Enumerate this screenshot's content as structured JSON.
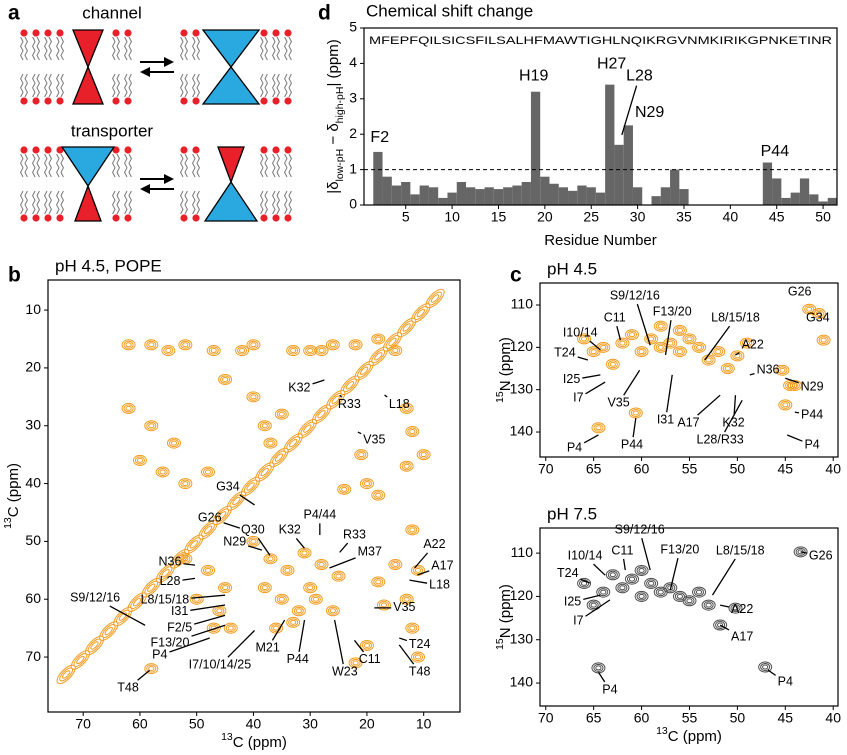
{
  "panel_labels": [
    "a",
    "b",
    "c",
    "d"
  ],
  "diagram": {
    "channel": "channel",
    "transporter": "transporter"
  },
  "chart_data": [
    {
      "type": "bar",
      "title": "Chemical shift change",
      "sequence": "MFEPFQILSICSFILSALHFMAWTIGHLNQIKRGVNMKIRIKGPNKETINR",
      "xlabel": "Residue Number",
      "ylabel_parts": [
        "|δ",
        "low-pH",
        " − δ",
        "high-pH",
        "| (ppm)"
      ],
      "x": [
        1,
        2,
        3,
        4,
        5,
        6,
        7,
        8,
        9,
        10,
        11,
        12,
        13,
        14,
        15,
        16,
        17,
        18,
        19,
        20,
        21,
        22,
        23,
        24,
        25,
        26,
        27,
        28,
        29,
        30,
        31,
        32,
        33,
        34,
        35,
        36,
        37,
        38,
        39,
        40,
        41,
        42,
        43,
        44,
        45,
        46,
        47,
        48,
        49,
        50,
        51
      ],
      "values": [
        null,
        1.5,
        0.8,
        0.55,
        0.65,
        0.3,
        0.55,
        0.5,
        0.2,
        0.35,
        0.65,
        0.5,
        0.45,
        0.5,
        0.45,
        0.5,
        0.55,
        0.65,
        3.2,
        0.8,
        0.6,
        0.5,
        0.4,
        0.55,
        0.5,
        0.35,
        3.4,
        1.7,
        2.25,
        0.5,
        null,
        0.25,
        0.5,
        1.0,
        0.45,
        null,
        null,
        null,
        null,
        null,
        null,
        null,
        null,
        1.2,
        0.75,
        0.2,
        0.35,
        0.75,
        0.3,
        0.1,
        0.2
      ],
      "color": "#666666",
      "reference_line": 1,
      "xlim": [
        0.5,
        51.5
      ],
      "ylim": [
        0,
        5
      ],
      "xticks": [
        5,
        10,
        15,
        20,
        25,
        30,
        35,
        40,
        45,
        50
      ],
      "yticks": [
        0,
        1,
        2,
        3,
        4,
        5
      ],
      "annotations": [
        {
          "text": "F2",
          "x": 2.2,
          "y": 1.9
        },
        {
          "text": "H19",
          "x": 18.8,
          "y": 3.64
        },
        {
          "text": "H27",
          "x": 27.2,
          "y": 3.98
        },
        {
          "text": "L28",
          "x": 30.2,
          "y": 3.64,
          "at": [
            28.3,
            1.98
          ]
        },
        {
          "text": "N29",
          "x": 31.3,
          "y": 2.6
        },
        {
          "text": "P44",
          "x": 44.8,
          "y": 1.5
        }
      ]
    },
    {
      "type": "contour",
      "title": "pH 4.5, POPE",
      "color": "#f39c1f",
      "xlabel_parts": [
        "13",
        "C (ppm)"
      ],
      "ylabel_parts": [
        "13",
        "C (ppm)"
      ],
      "xlim": [
        76.2,
        3.6
      ],
      "ylim": [
        79.5,
        4.8
      ],
      "xticks": [
        70,
        60,
        50,
        40,
        30,
        20,
        10
      ],
      "yticks": [
        10,
        20,
        30,
        40,
        50,
        60,
        70
      ],
      "diagonal": {
        "x": [
          73,
          70.5,
          68,
          65.5,
          63,
          60.5,
          58,
          55.5,
          53,
          50.5,
          48,
          45.5,
          43,
          40.5,
          38,
          35.5,
          33,
          30.5,
          28,
          25.5,
          23,
          20.5,
          18,
          15.5,
          13,
          10.5,
          8
        ],
        "y": [
          73,
          70.5,
          68,
          65.5,
          63,
          60.5,
          58,
          55.5,
          53,
          50.5,
          48,
          45.5,
          43,
          40.5,
          38,
          35.5,
          33,
          30.5,
          28,
          25.5,
          23,
          20.5,
          18,
          15.5,
          13,
          10.5,
          8
        ]
      },
      "peaks": {
        "x": [
          62,
          58,
          55,
          52,
          47,
          42,
          40,
          33,
          30,
          28,
          26,
          22,
          18,
          15,
          62,
          58,
          54,
          60,
          56,
          52,
          48,
          45,
          40,
          38,
          35,
          37,
          13,
          12,
          10,
          13,
          20,
          24,
          18,
          40,
          37,
          34,
          31,
          28,
          25,
          38,
          35,
          32,
          29,
          26,
          36,
          33,
          30,
          12,
          11,
          13,
          12,
          11,
          15,
          18,
          52,
          48,
          45,
          50,
          46,
          44,
          47,
          58,
          20,
          22,
          17,
          21
        ],
        "y": [
          16,
          16,
          17,
          16,
          17,
          17,
          16,
          17,
          17,
          17,
          16,
          16,
          15,
          17,
          27,
          30,
          33,
          36,
          38,
          40,
          38,
          22,
          25,
          30,
          28,
          33,
          27,
          31,
          35,
          37,
          40,
          41,
          42,
          50,
          53,
          55,
          52,
          54,
          56,
          58,
          60,
          62,
          60,
          62,
          65,
          64,
          58,
          48,
          55,
          60,
          65,
          70,
          54,
          57,
          53,
          55,
          58,
          60,
          62,
          65,
          65,
          72,
          68,
          71,
          61,
          35
        ]
      },
      "annotations": [
        {
          "text": "V35",
          "x": 18.7,
          "y": 32.5,
          "at": [
            21.6,
            31.1
          ]
        },
        {
          "text": "K32",
          "x": 31.9,
          "y": 23.5,
          "at": [
            27.5,
            22.1
          ]
        },
        {
          "text": "L18",
          "x": 14.3,
          "y": 26.4,
          "at": [
            16.9,
            24.7
          ]
        },
        {
          "text": "R33",
          "x": 23.1,
          "y": 26.4,
          "at": [
            24.8,
            24.7
          ]
        },
        {
          "text": "G34",
          "x": 44.5,
          "y": 40.6,
          "at": [
            39.8,
            43.7
          ]
        },
        {
          "text": "G26",
          "x": 47.7,
          "y": 46.0,
          "at": [
            42.4,
            47.7
          ]
        },
        {
          "text": "Q30",
          "x": 40.1,
          "y": 48.1,
          "at": [
            37.1,
            52.4
          ]
        },
        {
          "text": "N29",
          "x": 43.3,
          "y": 50.1,
          "at": [
            38.5,
            51.5
          ]
        },
        {
          "text": "K32",
          "x": 33.6,
          "y": 48.1,
          "at": [
            31.0,
            51.2
          ]
        },
        {
          "text": "P4/44",
          "x": 28.3,
          "y": 45.5,
          "at": [
            28.3,
            48.9
          ]
        },
        {
          "text": "R33",
          "x": 22.2,
          "y": 48.9,
          "at": [
            24.8,
            51.9
          ]
        },
        {
          "text": "M37",
          "x": 19.5,
          "y": 51.9,
          "at": [
            26.6,
            54.6
          ]
        },
        {
          "text": "A22",
          "x": 8.1,
          "y": 50.6,
          "at": [
            11.6,
            54.6
          ]
        },
        {
          "text": "A17",
          "x": 6.7,
          "y": 54.3,
          "at": [
            11.1,
            55.8
          ]
        },
        {
          "text": "L18",
          "x": 7.2,
          "y": 57.6,
          "at": [
            12.5,
            56.7
          ]
        },
        {
          "text": "N36",
          "x": 54.7,
          "y": 53.6,
          "at": [
            50.3,
            54.1
          ]
        },
        {
          "text": "L28",
          "x": 54.7,
          "y": 57.0,
          "at": [
            50.3,
            56.4
          ]
        },
        {
          "text": "S9/12/16",
          "x": 67.9,
          "y": 59.8,
          "at": [
            59.1,
            64.5
          ]
        },
        {
          "text": "L8/15/18",
          "x": 55.6,
          "y": 60.2,
          "at": [
            45.0,
            59.3
          ]
        },
        {
          "text": "I31",
          "x": 53.0,
          "y": 62.2,
          "at": [
            45.0,
            61.0
          ]
        },
        {
          "text": "F2/5",
          "x": 53.0,
          "y": 65.0,
          "at": [
            45.0,
            62.8
          ]
        },
        {
          "text": "F13/20",
          "x": 54.7,
          "y": 67.6,
          "at": [
            45.0,
            64.5
          ]
        },
        {
          "text": "P4",
          "x": 56.5,
          "y": 69.7,
          "at": [
            47.7,
            66.7
          ]
        },
        {
          "text": "I7/10/14/25",
          "x": 45.9,
          "y": 71.4,
          "at": [
            39.8,
            65.4
          ]
        },
        {
          "text": "M21",
          "x": 37.5,
          "y": 68.5,
          "at": [
            34.5,
            63.6
          ]
        },
        {
          "text": "P44",
          "x": 32.2,
          "y": 70.5,
          "at": [
            31.0,
            63.6
          ]
        },
        {
          "text": "W23",
          "x": 23.9,
          "y": 72.6,
          "at": [
            25.7,
            63.6
          ]
        },
        {
          "text": "C11",
          "x": 19.5,
          "y": 70.5,
          "at": [
            22.2,
            67.1
          ]
        },
        {
          "text": "V35",
          "x": 13.4,
          "y": 61.5,
          "at": [
            18.7,
            61.5
          ]
        },
        {
          "text": "T24",
          "x": 10.7,
          "y": 67.9,
          "at": [
            14.3,
            66.7
          ]
        },
        {
          "text": "T48",
          "x": 10.7,
          "y": 72.6,
          "at": [
            14.3,
            67.9
          ]
        },
        {
          "text": "T48",
          "x": 62.1,
          "y": 75.4,
          "at": [
            58.3,
            72.3
          ]
        }
      ]
    },
    {
      "type": "contour",
      "title": "pH 4.5",
      "color": "#f39c1f",
      "ylabel_parts": [
        "15",
        "N (ppm)"
      ],
      "xlim": [
        70.6,
        39.5
      ],
      "ylim": [
        145.9,
        104.8
      ],
      "xticks": [
        70,
        65,
        60,
        55,
        50,
        45,
        40
      ],
      "yticks": [
        110,
        120,
        130,
        140
      ],
      "peaks": {
        "x": [
          66,
          64,
          62,
          61,
          60,
          59,
          58,
          57,
          56,
          55,
          54,
          53,
          52,
          51,
          50,
          49,
          58,
          56,
          65,
          63,
          64.5,
          60.6,
          42.5,
          41.5,
          41,
          44.5,
          44,
          45,
          45.3
        ],
        "y": [
          118,
          120,
          119,
          117,
          121,
          118,
          120,
          119,
          121,
          118,
          120,
          123,
          121,
          125,
          122,
          119,
          115,
          116,
          121,
          124,
          139,
          135.5,
          111,
          112,
          118.3,
          129,
          129,
          133.6,
          125.4
        ]
      },
      "annotations": [
        {
          "text": "G26",
          "x": 43.5,
          "y": 107.0
        },
        {
          "text": "G34",
          "x": 41.6,
          "y": 113.1
        },
        {
          "text": "T24",
          "x": 68.0,
          "y": 121.4,
          "at": [
            65.6,
            123.0
          ]
        },
        {
          "text": "I10/14",
          "x": 66.4,
          "y": 116.6,
          "at": [
            64.3,
            120.6
          ]
        },
        {
          "text": "C11",
          "x": 62.8,
          "y": 113.1,
          "at": [
            62.2,
            118.3
          ]
        },
        {
          "text": "S9/12/16",
          "x": 60.7,
          "y": 107.9,
          "at": [
            59.1,
            119.5
          ]
        },
        {
          "text": "F13/20",
          "x": 56.8,
          "y": 111.7,
          "at": [
            57.5,
            121.8
          ]
        },
        {
          "text": "L8/15/18",
          "x": 50.2,
          "y": 113.1,
          "at": [
            53.4,
            123.0
          ]
        },
        {
          "text": "A22",
          "x": 48.4,
          "y": 119.5,
          "at": [
            50.2,
            121.8
          ]
        },
        {
          "text": "N36",
          "x": 46.8,
          "y": 125.4,
          "at": [
            48.7,
            126.5
          ]
        },
        {
          "text": "N29",
          "x": 42.2,
          "y": 129.4,
          "at": [
            45.0,
            127.3
          ]
        },
        {
          "text": "P44",
          "x": 42.2,
          "y": 136.0,
          "at": [
            44.0,
            135.3
          ]
        },
        {
          "text": "P4",
          "x": 42.2,
          "y": 143.1,
          "at": [
            44.8,
            140.7
          ]
        },
        {
          "text": "I25",
          "x": 67.3,
          "y": 127.7,
          "at": [
            64.3,
            126.5
          ]
        },
        {
          "text": "I7",
          "x": 66.6,
          "y": 132.0,
          "at": [
            63.8,
            128.2
          ]
        },
        {
          "text": "V35",
          "x": 62.4,
          "y": 133.2,
          "at": [
            60.2,
            125.4
          ]
        },
        {
          "text": "I31",
          "x": 57.5,
          "y": 137.2,
          "at": [
            56.8,
            126.5
          ]
        },
        {
          "text": "A17",
          "x": 55.1,
          "y": 137.9,
          "at": [
            51.8,
            131.3
          ]
        },
        {
          "text": "K32",
          "x": 50.4,
          "y": 137.9,
          "at": [
            50.2,
            131.3
          ]
        },
        {
          "text": "L28/R33",
          "x": 51.8,
          "y": 141.9,
          "at": [
            49.5,
            132.5
          ]
        },
        {
          "text": "P44",
          "x": 61.0,
          "y": 143.1,
          "at": [
            60.6,
            136.7
          ]
        },
        {
          "text": "P4",
          "x": 67.0,
          "y": 143.8,
          "at": [
            64.5,
            140.7
          ]
        }
      ]
    },
    {
      "type": "contour",
      "title": "pH 7.5",
      "color": "#4d4d4d",
      "xlabel_parts": [
        "13",
        "C (ppm)"
      ],
      "ylabel_parts": [
        "15",
        "N (ppm)"
      ],
      "xlim": [
        70.6,
        39.5
      ],
      "ylim": [
        145.3,
        104.2
      ],
      "xticks": [
        70,
        65,
        60,
        55,
        50,
        45,
        40
      ],
      "yticks": [
        110,
        120,
        130,
        140
      ],
      "peaks": {
        "x": [
          66,
          64,
          62,
          61,
          60,
          59,
          58,
          57,
          56,
          55,
          54,
          53,
          63,
          60,
          65,
          50.2,
          51.8,
          43.4,
          64.5,
          47.1
        ],
        "y": [
          117,
          119,
          118,
          116,
          120,
          117,
          119,
          118,
          120,
          121,
          119,
          122,
          115,
          114,
          122,
          122.7,
          126.6,
          109.7,
          136.5,
          136.3
        ]
      },
      "annotations": [
        {
          "text": "S9/12/16",
          "x": 60.2,
          "y": 104.7,
          "at": [
            59.1,
            113.9
          ]
        },
        {
          "text": "C11",
          "x": 62.0,
          "y": 109.5,
          "at": [
            61.7,
            113.9
          ]
        },
        {
          "text": "I10/14",
          "x": 65.9,
          "y": 110.7,
          "at": [
            63.8,
            115.1
          ]
        },
        {
          "text": "T24",
          "x": 67.7,
          "y": 114.8,
          "at": [
            65.4,
            116.9
          ]
        },
        {
          "text": "F13/20",
          "x": 56.0,
          "y": 109.3,
          "at": [
            57.0,
            118.5
          ]
        },
        {
          "text": "L8/15/18",
          "x": 49.7,
          "y": 109.5,
          "at": [
            52.6,
            119.7
          ]
        },
        {
          "text": "G26",
          "x": 41.3,
          "y": 110.7,
          "at": [
            43.4,
            109.7
          ]
        },
        {
          "text": "I25",
          "x": 67.2,
          "y": 121.3,
          "at": [
            64.3,
            119.7
          ]
        },
        {
          "text": "I7",
          "x": 66.6,
          "y": 125.7,
          "at": [
            63.3,
            120.8
          ]
        },
        {
          "text": "A22",
          "x": 49.5,
          "y": 123.1,
          "at": [
            51.8,
            122.0
          ]
        },
        {
          "text": "A17",
          "x": 49.5,
          "y": 129.4,
          "at": [
            51.8,
            126.6
          ]
        },
        {
          "text": "P4",
          "x": 63.3,
          "y": 141.6,
          "at": [
            64.5,
            137.5
          ]
        },
        {
          "text": "P4",
          "x": 45.0,
          "y": 139.8,
          "at": [
            46.8,
            137.0
          ]
        }
      ]
    }
  ]
}
